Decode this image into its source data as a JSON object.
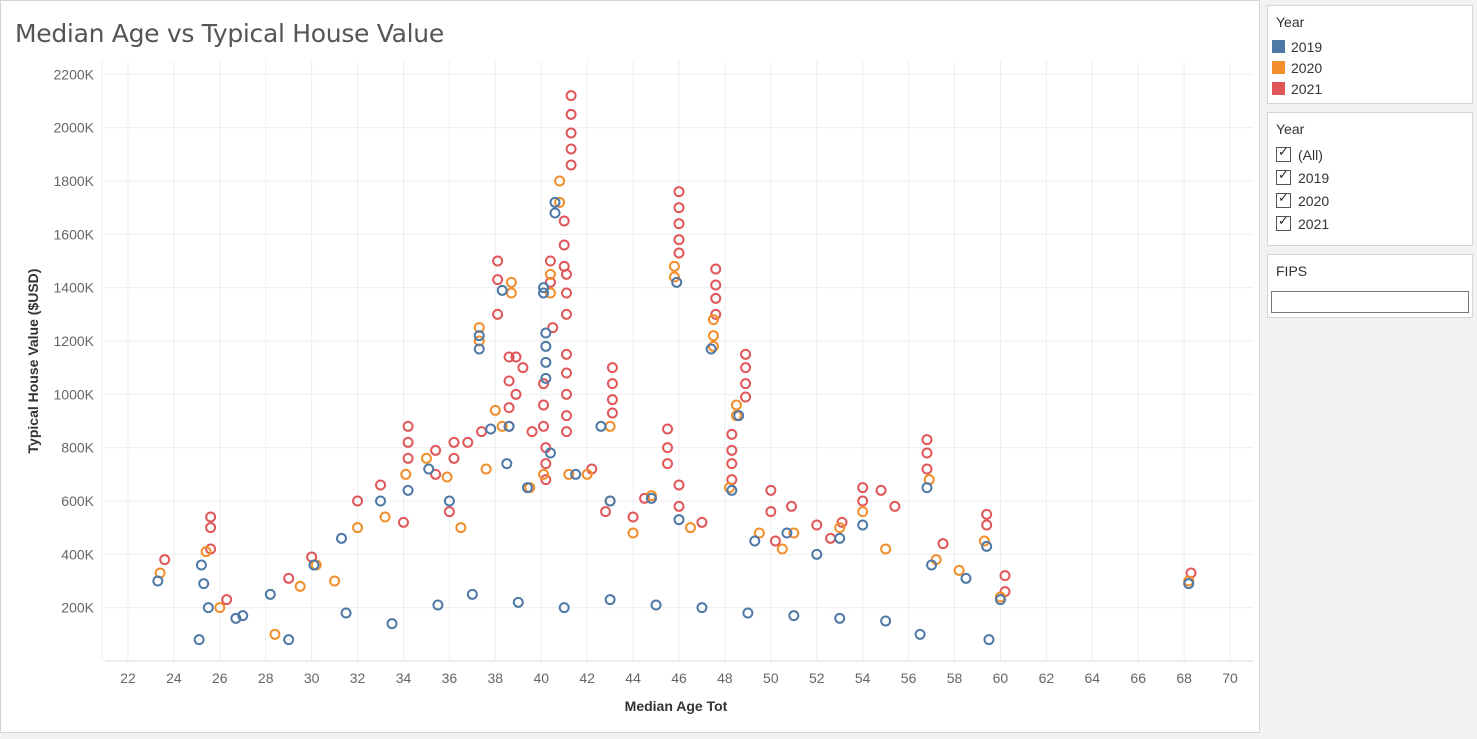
{
  "title": "Median Age vs Typical House Value",
  "legend": {
    "title": "Year",
    "items": [
      {
        "label": "2019",
        "color": "#4e79a7"
      },
      {
        "label": "2020",
        "color": "#f28e2b"
      },
      {
        "label": "2021",
        "color": "#e15759"
      }
    ]
  },
  "filter": {
    "title": "Year",
    "options": [
      {
        "label": "(All)",
        "checked": true
      },
      {
        "label": "2019",
        "checked": true
      },
      {
        "label": "2020",
        "checked": true
      },
      {
        "label": "2021",
        "checked": true
      }
    ]
  },
  "fips": {
    "title": "FIPS",
    "value": ""
  },
  "chart_data": {
    "type": "scatter",
    "title": "Median Age vs Typical House Value",
    "xlabel": "Median Age Tot",
    "ylabel": "Typical House Value ($USD)",
    "xlim": [
      21,
      71
    ],
    "ylim": [
      0,
      2250000
    ],
    "x_ticks": [
      22,
      24,
      26,
      28,
      30,
      32,
      34,
      36,
      38,
      40,
      42,
      44,
      46,
      48,
      50,
      52,
      54,
      56,
      58,
      60,
      62,
      64,
      66,
      68,
      70
    ],
    "y_ticks": [
      {
        "value": 200000,
        "label": "200K"
      },
      {
        "value": 400000,
        "label": "400K"
      },
      {
        "value": 600000,
        "label": "600K"
      },
      {
        "value": 800000,
        "label": "800K"
      },
      {
        "value": 1000000,
        "label": "1000K"
      },
      {
        "value": 1200000,
        "label": "1200K"
      },
      {
        "value": 1400000,
        "label": "1400K"
      },
      {
        "value": 1600000,
        "label": "1600K"
      },
      {
        "value": 1800000,
        "label": "1800K"
      },
      {
        "value": 2000000,
        "label": "2000K"
      },
      {
        "value": 2200000,
        "label": "2200K"
      }
    ],
    "grid": true,
    "marker": "open-circle",
    "legend_position": "right",
    "series": [
      {
        "name": "2021",
        "color": "#e15759",
        "points": [
          [
            23.6,
            380000
          ],
          [
            25.6,
            540000
          ],
          [
            25.6,
            500000
          ],
          [
            25.6,
            420000
          ],
          [
            26.3,
            230000
          ],
          [
            29,
            310000
          ],
          [
            30,
            390000
          ],
          [
            32,
            600000
          ],
          [
            33,
            660000
          ],
          [
            34.2,
            880000
          ],
          [
            34.2,
            820000
          ],
          [
            34.2,
            760000
          ],
          [
            35.4,
            790000
          ],
          [
            35.4,
            700000
          ],
          [
            36.2,
            820000
          ],
          [
            36.2,
            760000
          ],
          [
            36.8,
            820000
          ],
          [
            37.4,
            860000
          ],
          [
            38.1,
            1500000
          ],
          [
            38.1,
            1430000
          ],
          [
            38.1,
            1300000
          ],
          [
            38.6,
            1140000
          ],
          [
            38.6,
            1050000
          ],
          [
            38.6,
            950000
          ],
          [
            38.6,
            880000
          ],
          [
            38.9,
            1140000
          ],
          [
            38.9,
            1000000
          ],
          [
            39.2,
            1100000
          ],
          [
            39.6,
            860000
          ],
          [
            40.1,
            1040000
          ],
          [
            40.1,
            960000
          ],
          [
            40.1,
            880000
          ],
          [
            40.2,
            800000
          ],
          [
            40.2,
            740000
          ],
          [
            40.2,
            680000
          ],
          [
            40.4,
            1500000
          ],
          [
            40.4,
            1420000
          ],
          [
            40.5,
            1250000
          ],
          [
            41.0,
            1650000
          ],
          [
            41.0,
            1560000
          ],
          [
            41.0,
            1480000
          ],
          [
            41.1,
            1450000
          ],
          [
            41.1,
            1380000
          ],
          [
            41.1,
            1300000
          ],
          [
            41.3,
            2120000
          ],
          [
            41.3,
            2050000
          ],
          [
            41.3,
            1980000
          ],
          [
            41.3,
            1920000
          ],
          [
            41.3,
            1860000
          ],
          [
            41.1,
            1150000
          ],
          [
            41.1,
            1080000
          ],
          [
            41.1,
            1000000
          ],
          [
            41.1,
            920000
          ],
          [
            41.1,
            860000
          ],
          [
            42.2,
            720000
          ],
          [
            43.1,
            1100000
          ],
          [
            43.1,
            1040000
          ],
          [
            43.1,
            980000
          ],
          [
            43.1,
            930000
          ],
          [
            44.5,
            610000
          ],
          [
            45.5,
            870000
          ],
          [
            45.5,
            800000
          ],
          [
            45.5,
            740000
          ],
          [
            46.0,
            1760000
          ],
          [
            46.0,
            1700000
          ],
          [
            46.0,
            1640000
          ],
          [
            46.0,
            1580000
          ],
          [
            46.0,
            1530000
          ],
          [
            46.0,
            660000
          ],
          [
            46.0,
            580000
          ],
          [
            47.6,
            1470000
          ],
          [
            47.6,
            1410000
          ],
          [
            47.6,
            1360000
          ],
          [
            47.6,
            1300000
          ],
          [
            48.3,
            850000
          ],
          [
            48.3,
            790000
          ],
          [
            48.3,
            740000
          ],
          [
            48.3,
            680000
          ],
          [
            48.9,
            1150000
          ],
          [
            48.9,
            1100000
          ],
          [
            48.9,
            1040000
          ],
          [
            48.9,
            990000
          ],
          [
            50.0,
            640000
          ],
          [
            50.0,
            560000
          ],
          [
            50.9,
            580000
          ],
          [
            52.0,
            510000
          ],
          [
            53.1,
            520000
          ],
          [
            54.0,
            650000
          ],
          [
            54.0,
            600000
          ],
          [
            54.8,
            640000
          ],
          [
            55.4,
            580000
          ],
          [
            56.8,
            830000
          ],
          [
            56.8,
            780000
          ],
          [
            56.8,
            720000
          ],
          [
            57.5,
            440000
          ],
          [
            59.4,
            550000
          ],
          [
            59.4,
            510000
          ],
          [
            60.2,
            320000
          ],
          [
            60.2,
            260000
          ],
          [
            68.3,
            330000
          ],
          [
            42.8,
            560000
          ],
          [
            44.0,
            540000
          ],
          [
            36.0,
            560000
          ],
          [
            34.0,
            520000
          ],
          [
            50.2,
            450000
          ],
          [
            52.6,
            460000
          ],
          [
            47.0,
            520000
          ]
        ]
      },
      {
        "name": "2020",
        "color": "#f28e2b",
        "points": [
          [
            23.4,
            330000
          ],
          [
            25.4,
            410000
          ],
          [
            26.0,
            200000
          ],
          [
            28.4,
            100000
          ],
          [
            30.2,
            360000
          ],
          [
            32.0,
            500000
          ],
          [
            33.2,
            540000
          ],
          [
            34.1,
            700000
          ],
          [
            35.0,
            760000
          ],
          [
            35.9,
            690000
          ],
          [
            37.3,
            1250000
          ],
          [
            37.3,
            1200000
          ],
          [
            37.6,
            720000
          ],
          [
            38.0,
            940000
          ],
          [
            38.3,
            880000
          ],
          [
            38.7,
            1420000
          ],
          [
            38.7,
            1380000
          ],
          [
            39.5,
            650000
          ],
          [
            40.1,
            700000
          ],
          [
            40.4,
            1450000
          ],
          [
            40.4,
            1380000
          ],
          [
            40.8,
            1800000
          ],
          [
            40.8,
            1720000
          ],
          [
            41.2,
            700000
          ],
          [
            42.0,
            700000
          ],
          [
            43.0,
            880000
          ],
          [
            43.0,
            600000
          ],
          [
            44.8,
            620000
          ],
          [
            45.8,
            1480000
          ],
          [
            45.8,
            1440000
          ],
          [
            47.5,
            1280000
          ],
          [
            47.5,
            1220000
          ],
          [
            47.5,
            1180000
          ],
          [
            48.2,
            650000
          ],
          [
            48.5,
            960000
          ],
          [
            48.5,
            920000
          ],
          [
            49.5,
            480000
          ],
          [
            51.0,
            480000
          ],
          [
            53.0,
            500000
          ],
          [
            54.0,
            560000
          ],
          [
            56.9,
            680000
          ],
          [
            57.2,
            380000
          ],
          [
            58.2,
            340000
          ],
          [
            59.3,
            450000
          ],
          [
            60.0,
            240000
          ],
          [
            68.2,
            300000
          ],
          [
            29.5,
            280000
          ],
          [
            31.0,
            300000
          ],
          [
            36.5,
            500000
          ],
          [
            44.0,
            480000
          ],
          [
            46.5,
            500000
          ],
          [
            50.5,
            420000
          ],
          [
            55.0,
            420000
          ]
        ]
      },
      {
        "name": "2019",
        "color": "#4e79a7",
        "points": [
          [
            23.3,
            300000
          ],
          [
            25.1,
            80000
          ],
          [
            25.2,
            360000
          ],
          [
            25.3,
            290000
          ],
          [
            25.5,
            200000
          ],
          [
            26.7,
            160000
          ],
          [
            28.2,
            250000
          ],
          [
            29.0,
            80000
          ],
          [
            30.1,
            360000
          ],
          [
            31.3,
            460000
          ],
          [
            33.0,
            600000
          ],
          [
            34.2,
            640000
          ],
          [
            35.1,
            720000
          ],
          [
            36.0,
            600000
          ],
          [
            37.3,
            1220000
          ],
          [
            37.3,
            1170000
          ],
          [
            37.8,
            870000
          ],
          [
            38.6,
            880000
          ],
          [
            38.3,
            1390000
          ],
          [
            38.5,
            740000
          ],
          [
            39.4,
            650000
          ],
          [
            40.1,
            1400000
          ],
          [
            40.1,
            1380000
          ],
          [
            40.2,
            1230000
          ],
          [
            40.2,
            1180000
          ],
          [
            40.2,
            1120000
          ],
          [
            40.2,
            1060000
          ],
          [
            40.6,
            1720000
          ],
          [
            40.6,
            1680000
          ],
          [
            40.4,
            780000
          ],
          [
            41.5,
            700000
          ],
          [
            42.6,
            880000
          ],
          [
            43.0,
            600000
          ],
          [
            44.8,
            610000
          ],
          [
            45.9,
            1420000
          ],
          [
            46.0,
            530000
          ],
          [
            47.4,
            1170000
          ],
          [
            48.3,
            640000
          ],
          [
            48.6,
            920000
          ],
          [
            49.3,
            450000
          ],
          [
            50.7,
            480000
          ],
          [
            52.0,
            400000
          ],
          [
            53.0,
            460000
          ],
          [
            54.0,
            510000
          ],
          [
            56.8,
            650000
          ],
          [
            57.0,
            360000
          ],
          [
            58.5,
            310000
          ],
          [
            59.4,
            430000
          ],
          [
            60.0,
            230000
          ],
          [
            68.2,
            290000
          ],
          [
            59.5,
            80000
          ],
          [
            56.5,
            100000
          ],
          [
            27.0,
            170000
          ],
          [
            31.5,
            180000
          ],
          [
            33.5,
            140000
          ],
          [
            35.5,
            210000
          ],
          [
            37.0,
            250000
          ],
          [
            39.0,
            220000
          ],
          [
            41.0,
            200000
          ],
          [
            43.0,
            230000
          ],
          [
            45.0,
            210000
          ],
          [
            47.0,
            200000
          ],
          [
            49.0,
            180000
          ],
          [
            51.0,
            170000
          ],
          [
            53.0,
            160000
          ],
          [
            55.0,
            150000
          ]
        ]
      }
    ]
  }
}
